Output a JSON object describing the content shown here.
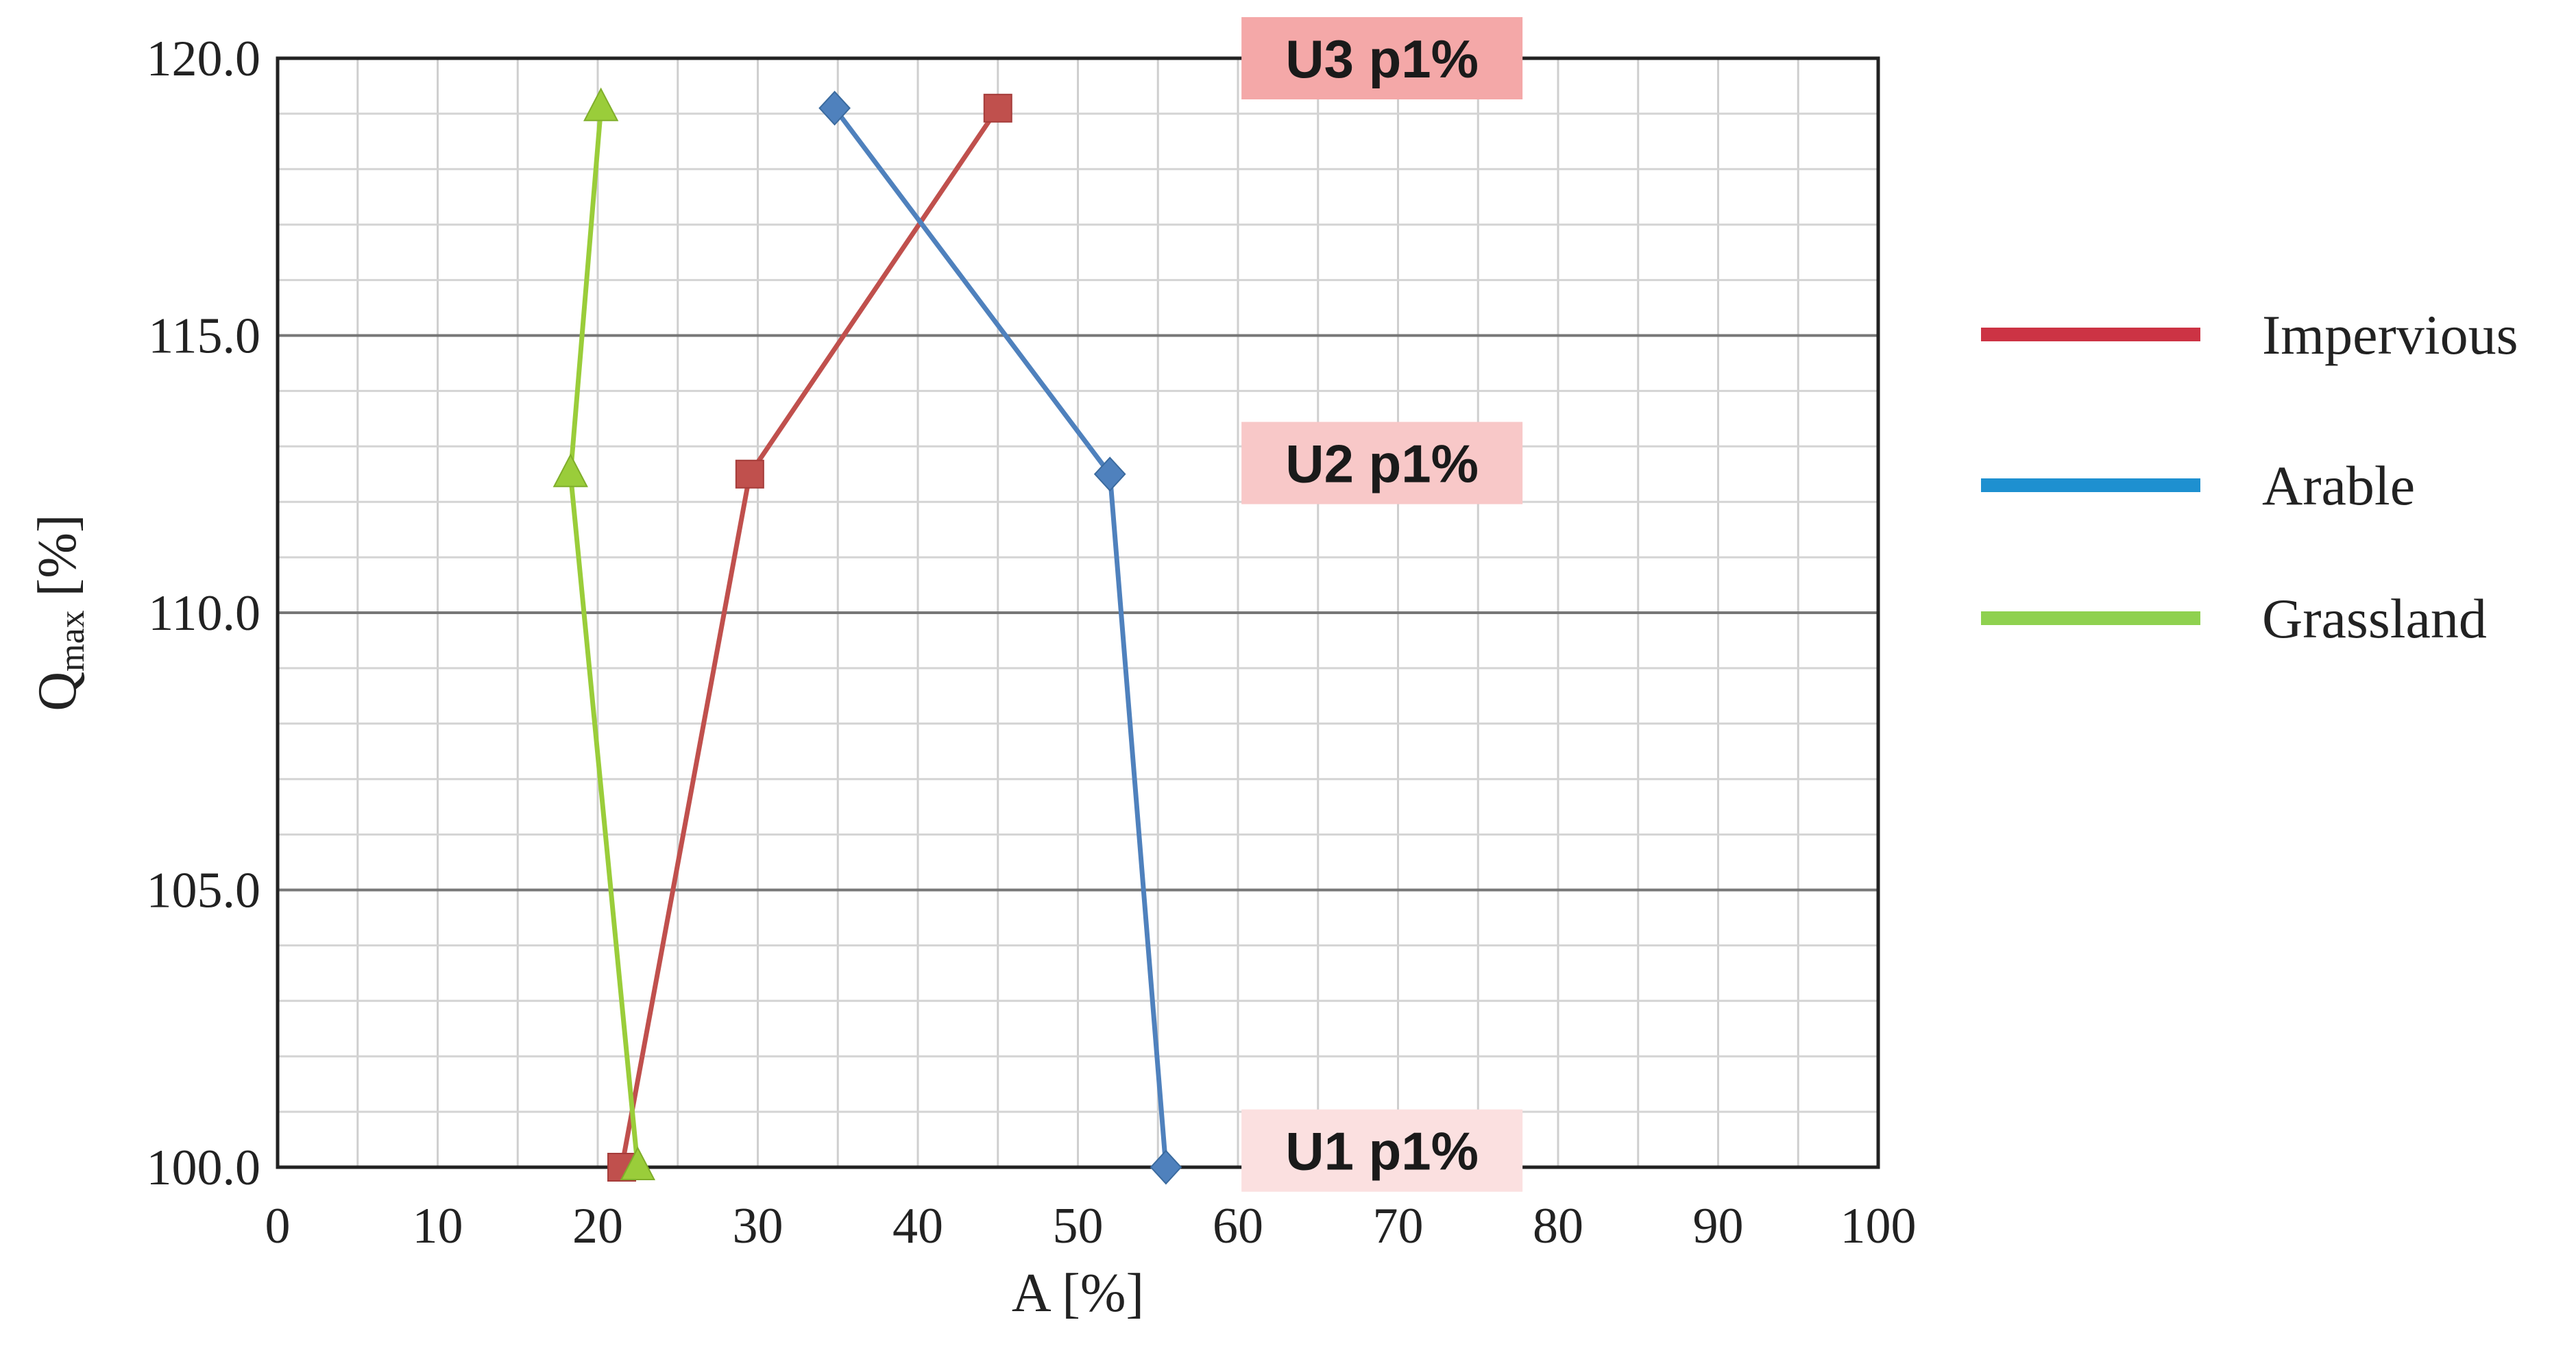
{
  "chart_data": {
    "type": "line",
    "xlabel": "A [%]",
    "ylabel": {
      "main": "Q",
      "sub": "max",
      "rest": " [%]"
    },
    "xlim": [
      0,
      100
    ],
    "ylim": [
      100,
      120
    ],
    "x_ticks": [
      "0",
      "10",
      "20",
      "30",
      "40",
      "50",
      "60",
      "70",
      "80",
      "90",
      "100"
    ],
    "y_ticks": [
      "100.0",
      "105.0",
      "110.0",
      "115.0",
      "120.0"
    ],
    "x_tick_values": [
      0,
      10,
      20,
      30,
      40,
      50,
      60,
      70,
      80,
      90,
      100
    ],
    "y_tick_values": [
      100,
      105,
      110,
      115,
      120
    ],
    "grid": true,
    "legend_position": "right",
    "series": [
      {
        "name": "Impervious",
        "color": "#c0504d",
        "legend_color": "#cc3344",
        "marker": "square",
        "points": [
          {
            "x": 21.5,
            "y": 100.0
          },
          {
            "x": 29.5,
            "y": 112.5
          },
          {
            "x": 45.0,
            "y": 119.1
          }
        ]
      },
      {
        "name": "Arable",
        "color": "#4f81bd",
        "legend_color": "#1e90d0",
        "marker": "diamond",
        "points": [
          {
            "x": 55.5,
            "y": 100.0
          },
          {
            "x": 52.0,
            "y": 112.5
          },
          {
            "x": 34.8,
            "y": 119.1
          }
        ]
      },
      {
        "name": "Grassland",
        "color": "#9acd3a",
        "legend_color": "#8fd14f",
        "marker": "triangle",
        "points": [
          {
            "x": 22.5,
            "y": 100.0
          },
          {
            "x": 18.3,
            "y": 112.5
          },
          {
            "x": 20.2,
            "y": 119.1
          }
        ]
      }
    ],
    "annotations": [
      {
        "text": "U3 p1%",
        "x": 69,
        "y": 120.0,
        "fill": "#f4a8a8"
      },
      {
        "text": "U2 p1%",
        "x": 69,
        "y": 112.7,
        "fill": "#f8c8c8"
      },
      {
        "text": "U1 p1%",
        "x": 69,
        "y": 100.3,
        "fill": "#fbe0e0"
      }
    ]
  }
}
